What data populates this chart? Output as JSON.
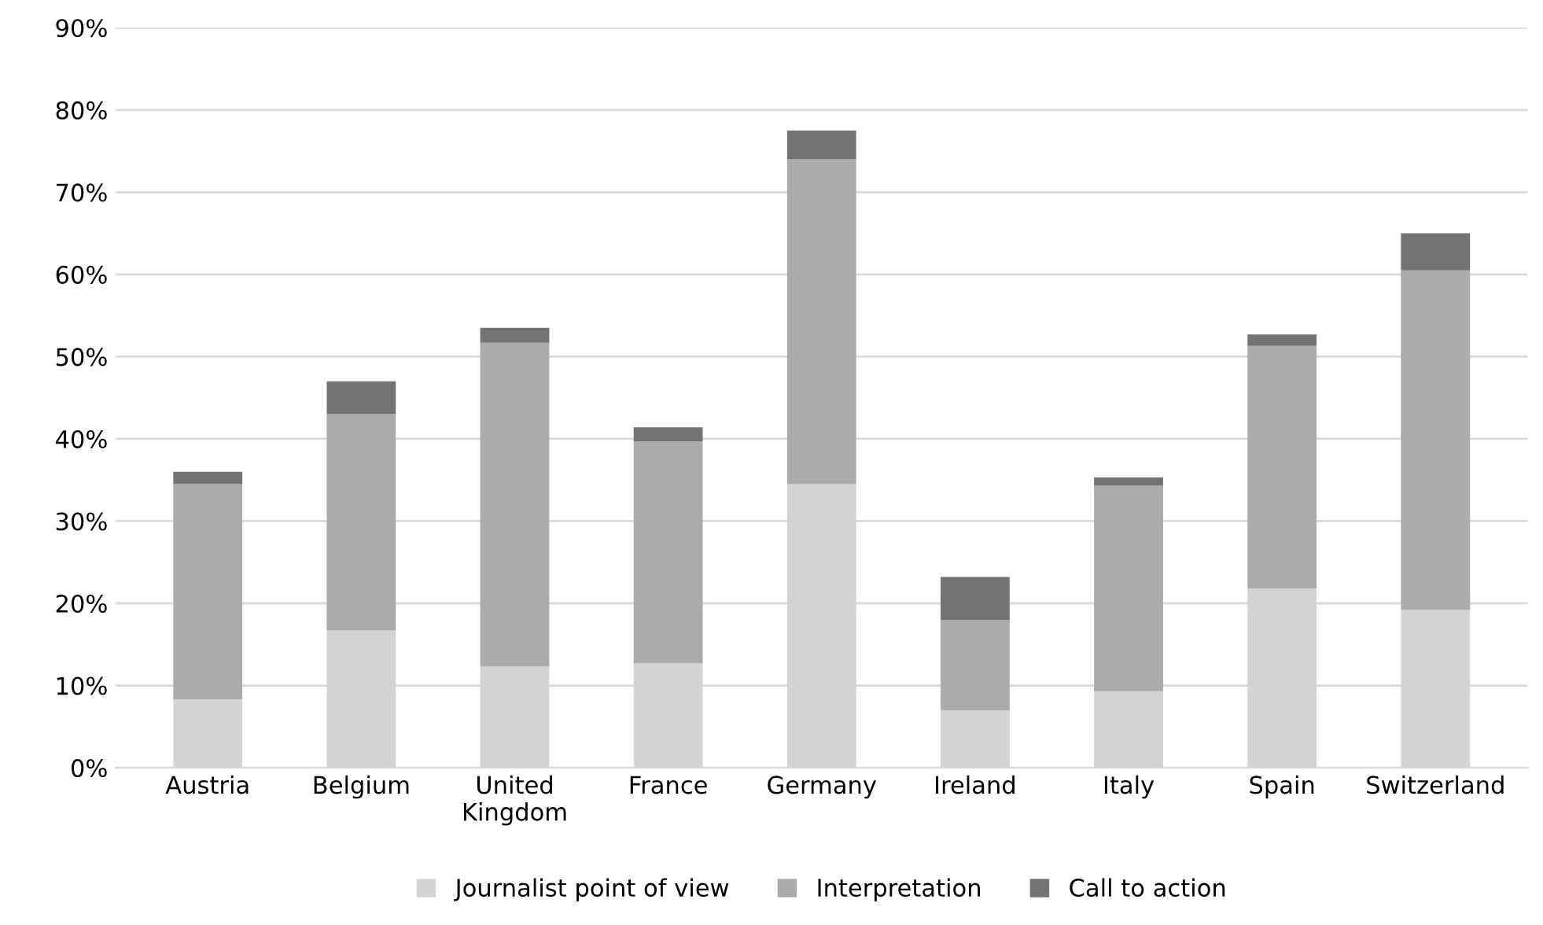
{
  "chart_data": {
    "type": "bar",
    "stacked": true,
    "categories": [
      "Austria",
      "Belgium",
      "United\nKingdom",
      "France",
      "Germany",
      "Ireland",
      "Italy",
      "Spain",
      "Switzerland"
    ],
    "series": [
      {
        "name": "Journalist point of view",
        "color": "#d3d3d3",
        "values": [
          8.3,
          16.7,
          12.3,
          12.7,
          34.5,
          7.0,
          9.3,
          21.8,
          19.2
        ]
      },
      {
        "name": "Interpretation",
        "color": "#ababab",
        "values": [
          26.2,
          26.3,
          39.4,
          27.0,
          39.5,
          11.0,
          25.0,
          29.5,
          41.3
        ]
      },
      {
        "name": "Call to action",
        "color": "#737373",
        "values": [
          1.5,
          4.0,
          1.8,
          1.7,
          3.5,
          5.2,
          1.0,
          1.4,
          4.5
        ]
      }
    ],
    "ylim": [
      0,
      90
    ],
    "yticks": [
      {
        "value": 0,
        "label": "0%"
      },
      {
        "value": 10,
        "label": "10%"
      },
      {
        "value": 20,
        "label": "20%"
      },
      {
        "value": 30,
        "label": "30%"
      },
      {
        "value": 40,
        "label": "40%"
      },
      {
        "value": 50,
        "label": "50%"
      },
      {
        "value": 60,
        "label": "60%"
      },
      {
        "value": 70,
        "label": "70%"
      },
      {
        "value": 80,
        "label": "80%"
      },
      {
        "value": 90,
        "label": "90%"
      }
    ],
    "grid": "y",
    "legend": "bottom"
  }
}
